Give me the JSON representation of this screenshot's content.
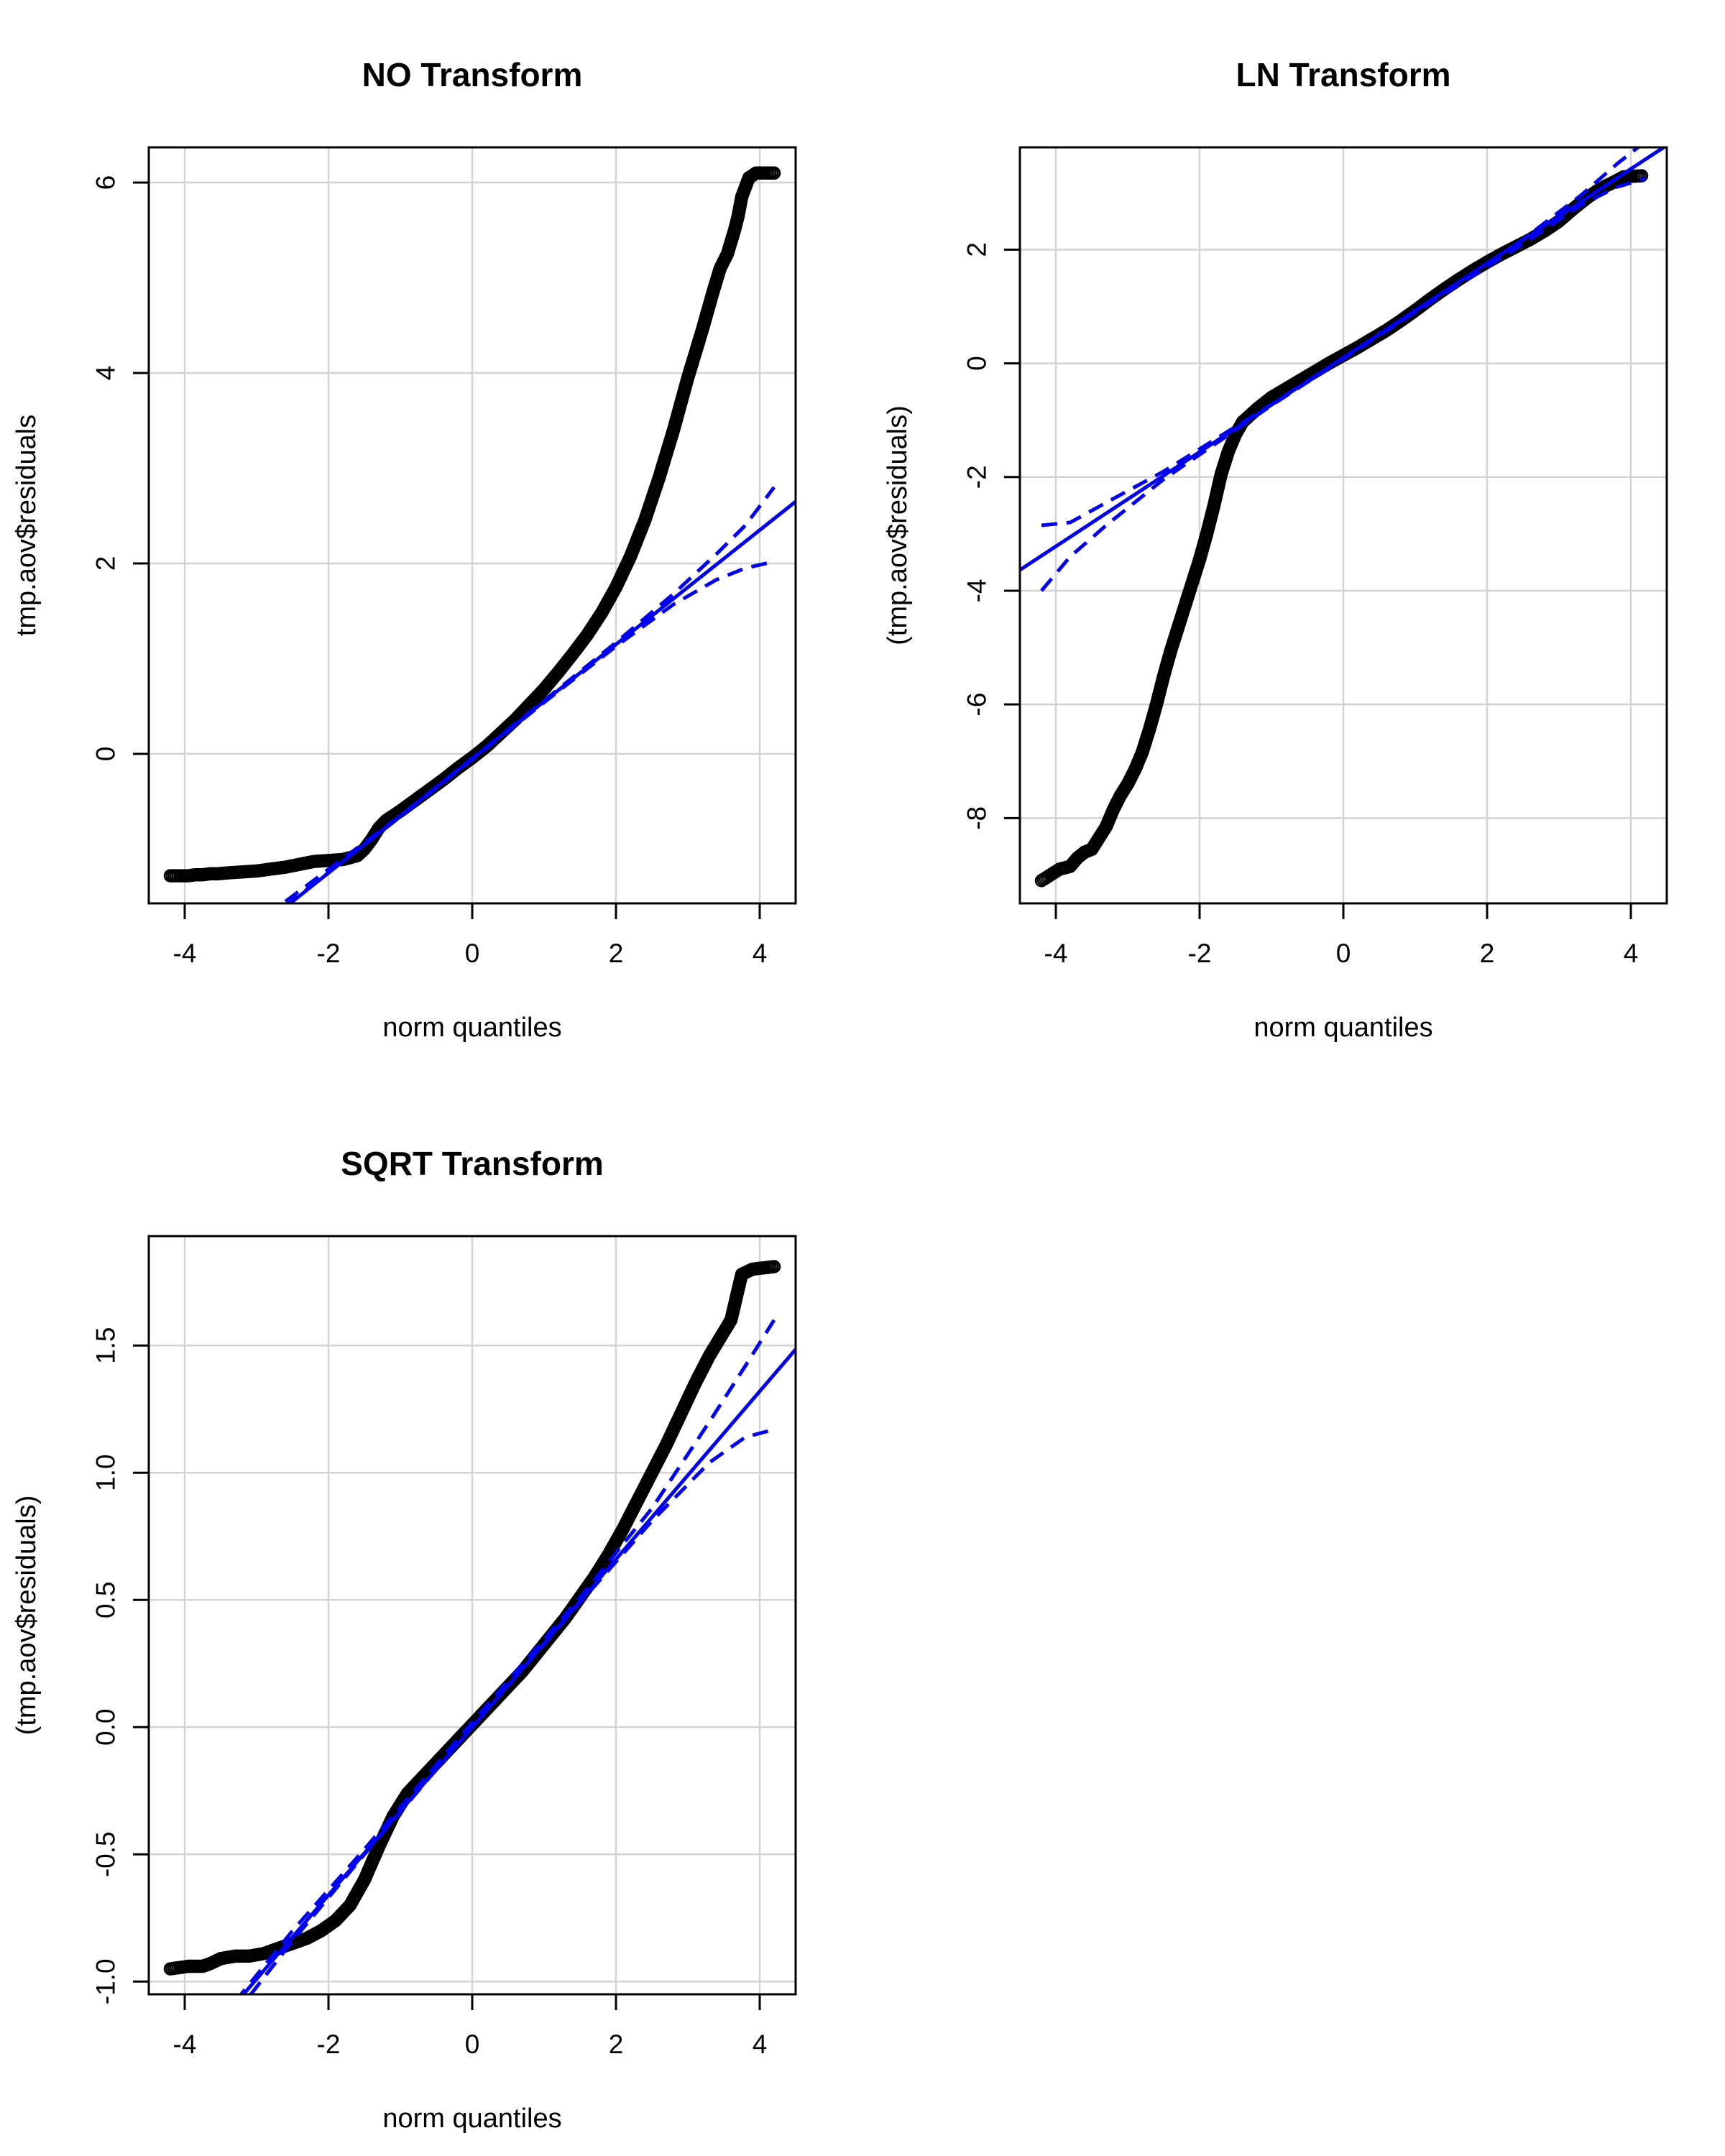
{
  "colors": {
    "background": "#ffffff",
    "points": "#000000",
    "reference_line": "#0000ee",
    "grid": "#d3d3d3",
    "frame": "#000000"
  },
  "chart_data": [
    {
      "type": "scatter",
      "subtype": "qq-plot",
      "title": "NO Transform",
      "xlabel": "norm quantiles",
      "ylabel": "tmp.aov$residuals",
      "xlim": [
        -4.5,
        4.5
      ],
      "ylim": [
        -1.57,
        6.37
      ],
      "xticks": [
        -4,
        -2,
        0,
        2,
        4
      ],
      "yticks": [
        0,
        2,
        4,
        6
      ],
      "grid": true,
      "reference_line": {
        "slope": 0.6,
        "intercept": -0.05
      },
      "envelope": {
        "upper": [
          [
            -2.6,
            -1.55
          ],
          [
            -1.0,
            -0.65
          ],
          [
            1.0,
            0.56
          ],
          [
            2.0,
            1.17
          ],
          [
            2.8,
            1.68
          ],
          [
            3.4,
            2.1
          ],
          [
            3.8,
            2.4
          ],
          [
            4.2,
            2.8
          ]
        ],
        "lower": [
          [
            -2.6,
            -1.6
          ],
          [
            -1.0,
            -0.66
          ],
          [
            1.0,
            0.54
          ],
          [
            2.0,
            1.13
          ],
          [
            2.8,
            1.57
          ],
          [
            3.4,
            1.83
          ],
          [
            3.8,
            1.95
          ],
          [
            4.2,
            2.02
          ]
        ]
      },
      "points": [
        [
          -4.2,
          -1.28
        ],
        [
          -3.95,
          -1.28
        ],
        [
          -3.85,
          -1.27
        ],
        [
          -3.75,
          -1.27
        ],
        [
          -3.65,
          -1.26
        ],
        [
          -3.55,
          -1.26
        ],
        [
          -3.4,
          -1.25
        ],
        [
          -3.2,
          -1.24
        ],
        [
          -3.0,
          -1.23
        ],
        [
          -2.8,
          -1.21
        ],
        [
          -2.6,
          -1.19
        ],
        [
          -2.4,
          -1.16
        ],
        [
          -2.2,
          -1.13
        ],
        [
          -2.0,
          -1.12
        ],
        [
          -1.8,
          -1.11
        ],
        [
          -1.6,
          -1.07
        ],
        [
          -1.5,
          -1.0
        ],
        [
          -1.4,
          -0.9
        ],
        [
          -1.3,
          -0.78
        ],
        [
          -1.2,
          -0.7
        ],
        [
          -1.0,
          -0.6
        ],
        [
          -0.8,
          -0.49
        ],
        [
          -0.6,
          -0.38
        ],
        [
          -0.4,
          -0.27
        ],
        [
          -0.2,
          -0.15
        ],
        [
          0.0,
          -0.04
        ],
        [
          0.2,
          0.08
        ],
        [
          0.4,
          0.22
        ],
        [
          0.6,
          0.36
        ],
        [
          0.8,
          0.52
        ],
        [
          1.0,
          0.68
        ],
        [
          1.2,
          0.86
        ],
        [
          1.4,
          1.05
        ],
        [
          1.6,
          1.25
        ],
        [
          1.8,
          1.48
        ],
        [
          2.0,
          1.75
        ],
        [
          2.2,
          2.07
        ],
        [
          2.4,
          2.45
        ],
        [
          2.6,
          2.9
        ],
        [
          2.8,
          3.4
        ],
        [
          3.0,
          3.95
        ],
        [
          3.2,
          4.45
        ],
        [
          3.35,
          4.85
        ],
        [
          3.45,
          5.1
        ],
        [
          3.55,
          5.25
        ],
        [
          3.65,
          5.5
        ],
        [
          3.7,
          5.65
        ],
        [
          3.75,
          5.85
        ],
        [
          3.85,
          6.05
        ],
        [
          3.95,
          6.1
        ],
        [
          4.2,
          6.1
        ]
      ]
    },
    {
      "type": "scatter",
      "subtype": "qq-plot",
      "title": "LN Transform",
      "xlabel": "norm quantiles",
      "ylabel": "(tmp.aov$residuals)",
      "xlim": [
        -4.5,
        4.5
      ],
      "ylim": [
        -9.5,
        3.8
      ],
      "xticks": [
        -4,
        -2,
        0,
        2,
        4
      ],
      "yticks": [
        -8,
        -6,
        -4,
        -2,
        0,
        2
      ],
      "grid": true,
      "reference_line": {
        "slope": 0.83,
        "intercept": 0.1
      },
      "envelope": {
        "upper": [
          [
            -4.2,
            -2.85
          ],
          [
            -3.8,
            -2.8
          ],
          [
            -3.3,
            -2.45
          ],
          [
            -2.5,
            -1.9
          ],
          [
            -1.0,
            -0.72
          ],
          [
            1.0,
            0.92
          ],
          [
            2.5,
            2.18
          ],
          [
            3.3,
            2.95
          ],
          [
            3.8,
            3.5
          ],
          [
            4.2,
            3.9
          ]
        ],
        "lower": [
          [
            -4.2,
            -4.0
          ],
          [
            -3.8,
            -3.4
          ],
          [
            -3.3,
            -2.85
          ],
          [
            -2.5,
            -2.04
          ],
          [
            -1.0,
            -0.74
          ],
          [
            1.0,
            0.9
          ],
          [
            2.5,
            2.1
          ],
          [
            3.3,
            2.78
          ],
          [
            3.8,
            3.1
          ],
          [
            4.2,
            3.25
          ]
        ]
      },
      "points": [
        [
          -4.2,
          -9.1
        ],
        [
          -3.95,
          -8.9
        ],
        [
          -3.8,
          -8.85
        ],
        [
          -3.7,
          -8.7
        ],
        [
          -3.6,
          -8.6
        ],
        [
          -3.5,
          -8.55
        ],
        [
          -3.4,
          -8.35
        ],
        [
          -3.3,
          -8.15
        ],
        [
          -3.2,
          -7.85
        ],
        [
          -3.1,
          -7.6
        ],
        [
          -3.0,
          -7.4
        ],
        [
          -2.9,
          -7.15
        ],
        [
          -2.8,
          -6.85
        ],
        [
          -2.7,
          -6.45
        ],
        [
          -2.6,
          -6.0
        ],
        [
          -2.5,
          -5.5
        ],
        [
          -2.4,
          -5.05
        ],
        [
          -2.3,
          -4.65
        ],
        [
          -2.2,
          -4.25
        ],
        [
          -2.1,
          -3.85
        ],
        [
          -2.0,
          -3.45
        ],
        [
          -1.9,
          -3.0
        ],
        [
          -1.8,
          -2.5
        ],
        [
          -1.7,
          -1.95
        ],
        [
          -1.6,
          -1.55
        ],
        [
          -1.5,
          -1.25
        ],
        [
          -1.4,
          -1.03
        ],
        [
          -1.2,
          -0.8
        ],
        [
          -1.0,
          -0.6
        ],
        [
          -0.8,
          -0.45
        ],
        [
          -0.6,
          -0.3
        ],
        [
          -0.4,
          -0.15
        ],
        [
          -0.2,
          0.0
        ],
        [
          0.0,
          0.14
        ],
        [
          0.2,
          0.28
        ],
        [
          0.4,
          0.43
        ],
        [
          0.6,
          0.58
        ],
        [
          0.8,
          0.75
        ],
        [
          1.0,
          0.93
        ],
        [
          1.2,
          1.12
        ],
        [
          1.4,
          1.3
        ],
        [
          1.6,
          1.47
        ],
        [
          1.8,
          1.63
        ],
        [
          2.0,
          1.78
        ],
        [
          2.2,
          1.92
        ],
        [
          2.4,
          2.05
        ],
        [
          2.6,
          2.18
        ],
        [
          2.8,
          2.33
        ],
        [
          3.0,
          2.5
        ],
        [
          3.2,
          2.72
        ],
        [
          3.4,
          2.92
        ],
        [
          3.55,
          3.05
        ],
        [
          3.65,
          3.12
        ],
        [
          3.75,
          3.18
        ],
        [
          3.9,
          3.28
        ],
        [
          4.15,
          3.3
        ]
      ]
    },
    {
      "type": "scatter",
      "subtype": "qq-plot",
      "title": "SQRT Transform",
      "xlabel": "norm quantiles",
      "ylabel": "(tmp.aov$residuals)",
      "xlim": [
        -4.5,
        4.5
      ],
      "ylim": [
        -1.05,
        1.93
      ],
      "xticks": [
        -4,
        -2,
        0,
        2,
        4
      ],
      "yticks": [
        -1.0,
        -0.5,
        0.0,
        0.5,
        1.0,
        1.5
      ],
      "ytick_labels": [
        "-1.0",
        "-0.5",
        "0.0",
        "0.5",
        "1.0",
        "1.5"
      ],
      "grid": true,
      "reference_line": {
        "slope": 0.33,
        "intercept": 0.0
      },
      "envelope": {
        "upper": [
          [
            -3.3,
            -1.08
          ],
          [
            -2.5,
            -0.8
          ],
          [
            -1.5,
            -0.48
          ],
          [
            0.0,
            0.02
          ],
          [
            1.5,
            0.51
          ],
          [
            2.5,
            0.86
          ],
          [
            3.3,
            1.2
          ],
          [
            3.8,
            1.42
          ],
          [
            4.2,
            1.6
          ]
        ],
        "lower": [
          [
            -3.3,
            -1.13
          ],
          [
            -2.5,
            -0.84
          ],
          [
            -1.5,
            -0.5
          ],
          [
            0.0,
            0.0
          ],
          [
            1.5,
            0.49
          ],
          [
            2.5,
            0.81
          ],
          [
            3.3,
            1.04
          ],
          [
            3.8,
            1.14
          ],
          [
            4.2,
            1.17
          ]
        ]
      },
      "points": [
        [
          -4.2,
          -0.95
        ],
        [
          -3.95,
          -0.94
        ],
        [
          -3.85,
          -0.94
        ],
        [
          -3.75,
          -0.94
        ],
        [
          -3.65,
          -0.93
        ],
        [
          -3.5,
          -0.91
        ],
        [
          -3.3,
          -0.9
        ],
        [
          -3.1,
          -0.9
        ],
        [
          -2.9,
          -0.89
        ],
        [
          -2.7,
          -0.87
        ],
        [
          -2.5,
          -0.85
        ],
        [
          -2.3,
          -0.83
        ],
        [
          -2.1,
          -0.8
        ],
        [
          -1.9,
          -0.76
        ],
        [
          -1.7,
          -0.7
        ],
        [
          -1.5,
          -0.6
        ],
        [
          -1.3,
          -0.47
        ],
        [
          -1.1,
          -0.35
        ],
        [
          -0.9,
          -0.26
        ],
        [
          -0.7,
          -0.2
        ],
        [
          -0.5,
          -0.14
        ],
        [
          -0.3,
          -0.08
        ],
        [
          -0.1,
          -0.02
        ],
        [
          0.1,
          0.04
        ],
        [
          0.3,
          0.1
        ],
        [
          0.5,
          0.16
        ],
        [
          0.7,
          0.22
        ],
        [
          0.9,
          0.29
        ],
        [
          1.1,
          0.36
        ],
        [
          1.3,
          0.43
        ],
        [
          1.5,
          0.51
        ],
        [
          1.7,
          0.59
        ],
        [
          1.9,
          0.68
        ],
        [
          2.1,
          0.78
        ],
        [
          2.3,
          0.89
        ],
        [
          2.5,
          1.0
        ],
        [
          2.7,
          1.11
        ],
        [
          2.9,
          1.23
        ],
        [
          3.1,
          1.35
        ],
        [
          3.3,
          1.46
        ],
        [
          3.45,
          1.53
        ],
        [
          3.6,
          1.6
        ],
        [
          3.65,
          1.66
        ],
        [
          3.75,
          1.78
        ],
        [
          3.9,
          1.8
        ],
        [
          4.2,
          1.81
        ]
      ]
    }
  ]
}
